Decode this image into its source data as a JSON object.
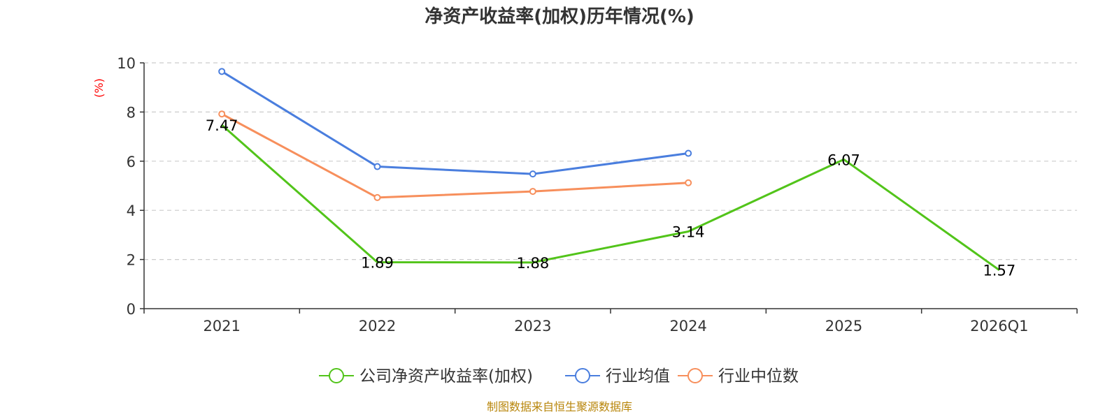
{
  "chart_data": {
    "type": "line",
    "title": "净资产收益率(加权)历年情况(%)",
    "ylabel": "(%)",
    "categories": [
      "2021",
      "2022",
      "2023",
      "2024",
      "2025",
      "2026Q1"
    ],
    "ylim": [
      0,
      10
    ],
    "yticks": [
      0,
      2,
      4,
      6,
      8,
      10
    ],
    "grid": true,
    "legend_position": "bottom",
    "series": [
      {
        "name": "公司净资产收益率(加权)",
        "color": "#52c41a",
        "values": [
          7.47,
          1.89,
          1.88,
          3.14,
          6.07,
          1.57
        ],
        "labels": [
          "7.47",
          "1.89",
          "1.88",
          "3.14",
          "6.07",
          "1.57"
        ],
        "show_markers": false
      },
      {
        "name": "行业均值",
        "color": "#4a7ede",
        "values": [
          9.65,
          5.78,
          5.48,
          6.32,
          null,
          null
        ],
        "show_markers": true
      },
      {
        "name": "行业中位数",
        "color": "#f78f5c",
        "values": [
          7.92,
          4.52,
          4.77,
          5.12,
          null,
          null
        ],
        "show_markers": true
      }
    ],
    "source": "制图数据来自恒生聚源数据库"
  }
}
